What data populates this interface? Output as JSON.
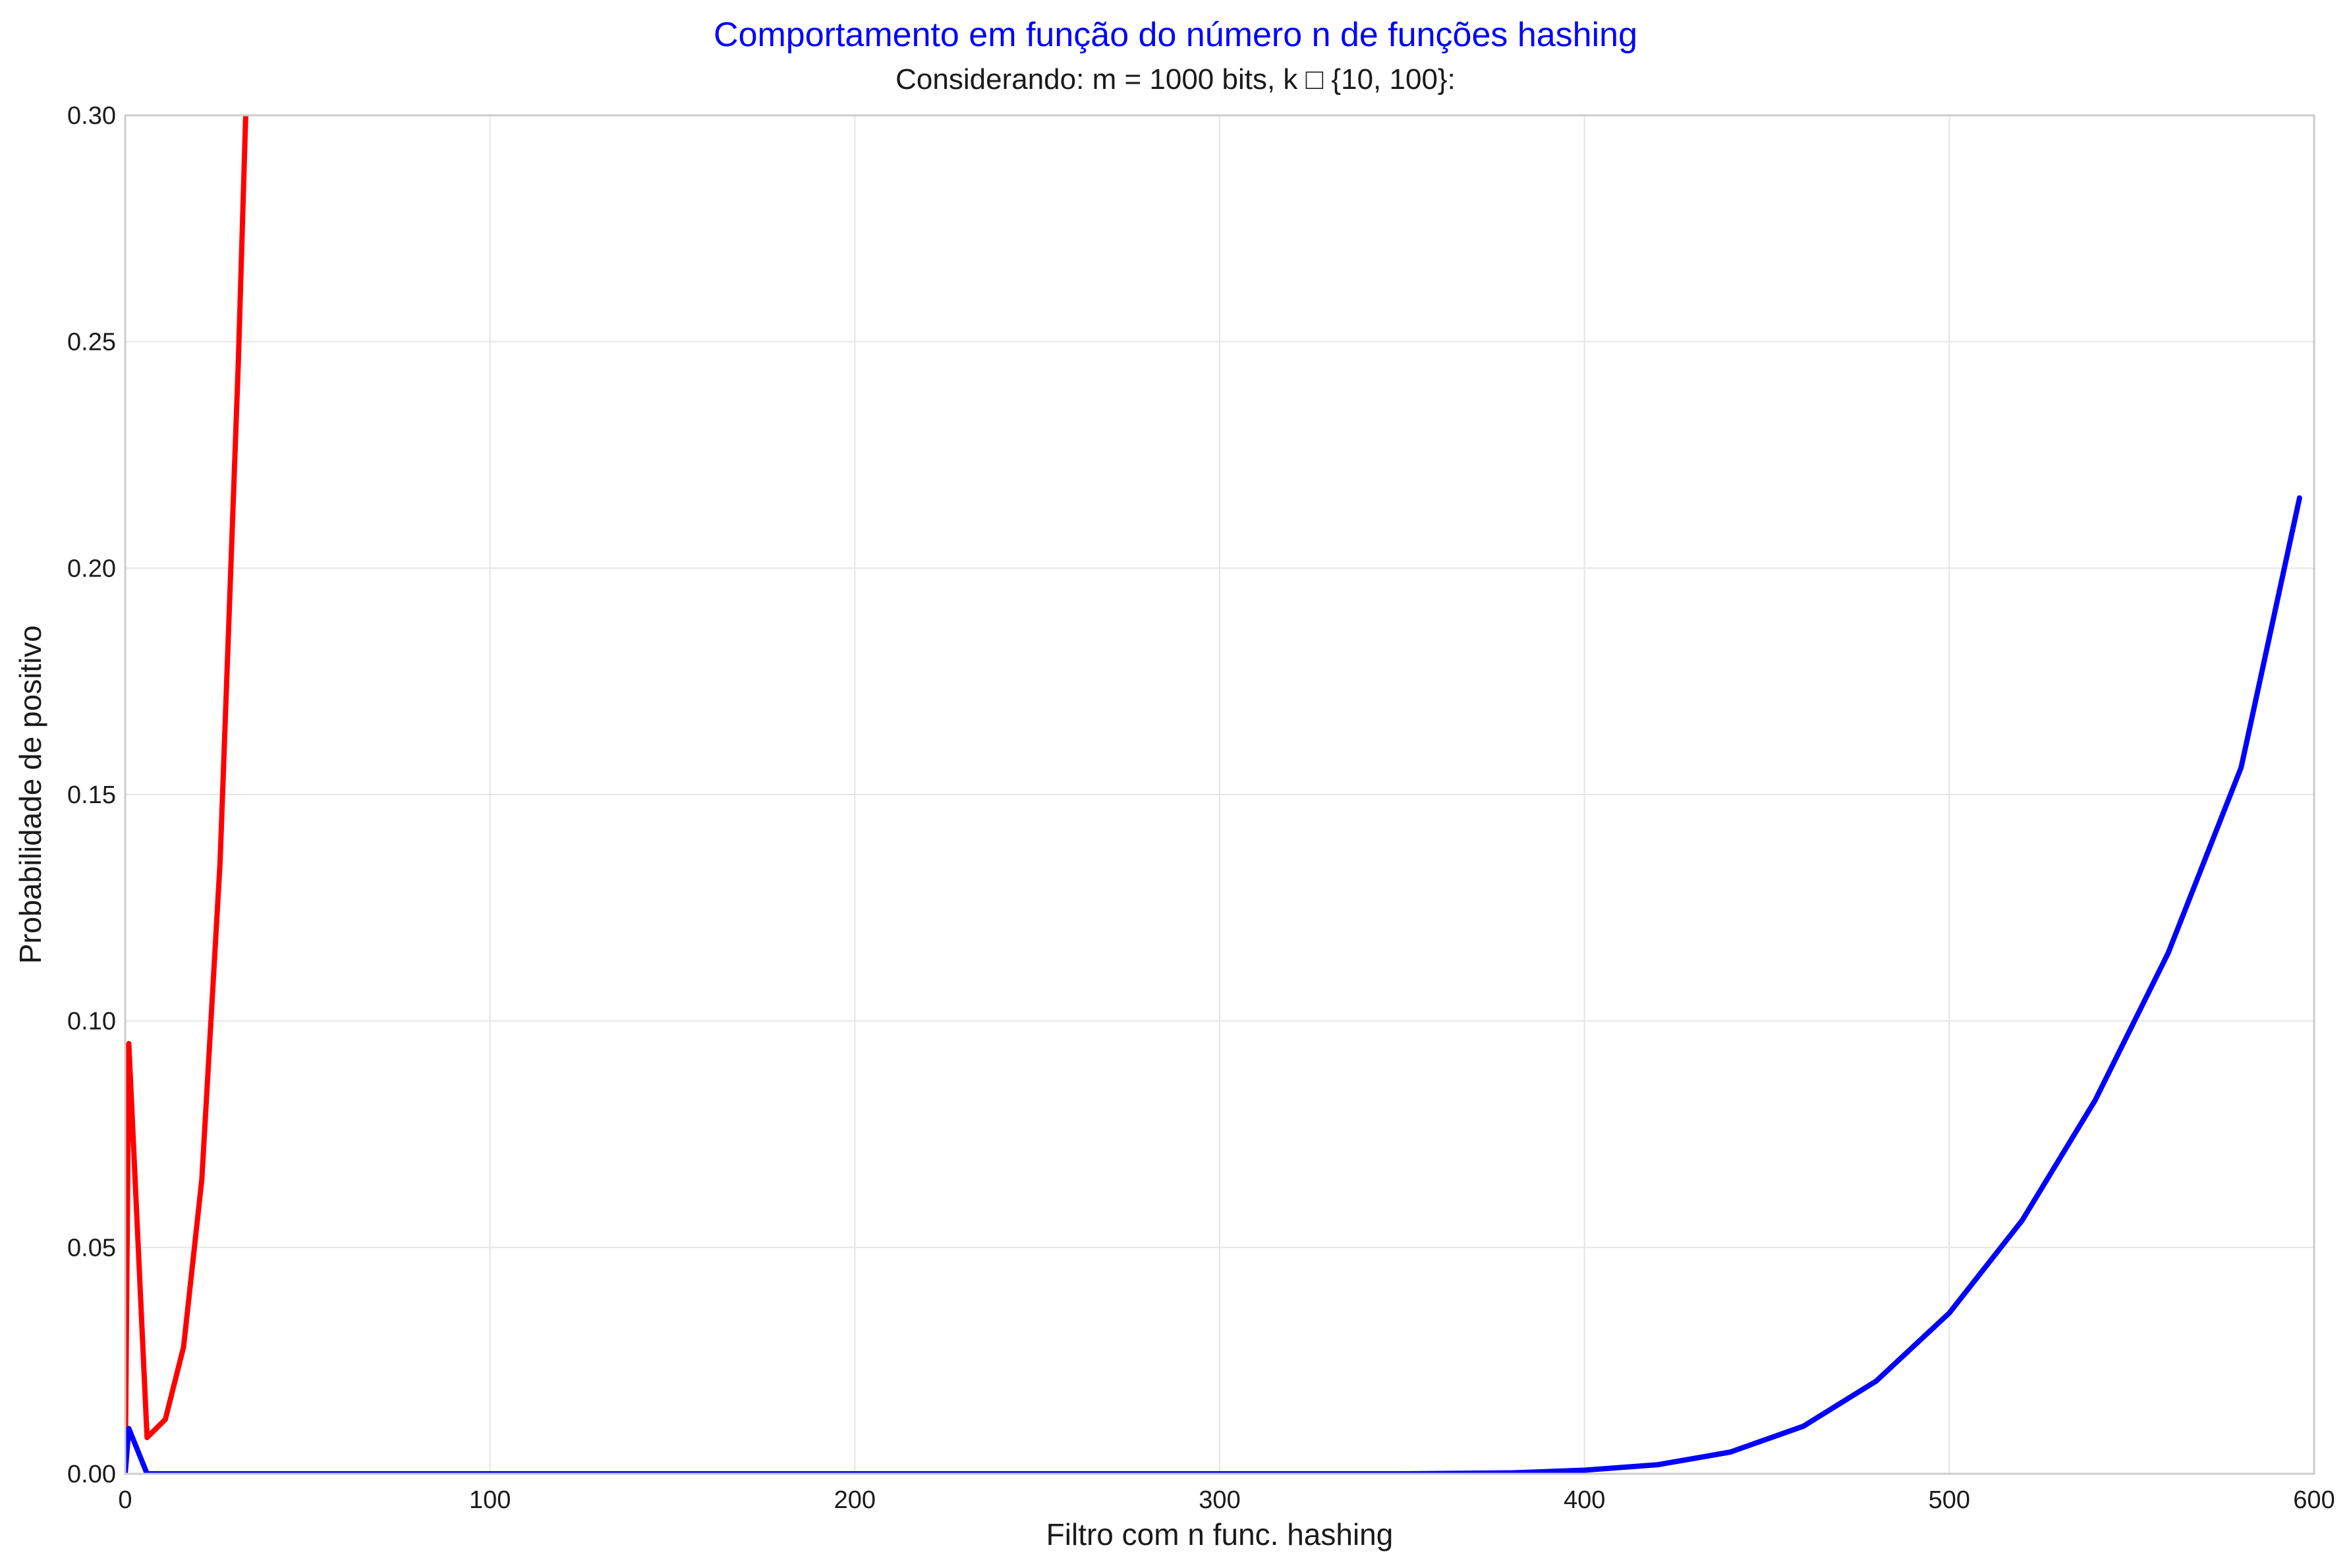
{
  "chart_data": {
    "type": "line",
    "title": "Comportamento em função do número n de funções hashing",
    "subtitle": "Considerando: m = 1000 bits, k □ {10, 100}:",
    "xlabel": "Filtro com n func. hashing",
    "ylabel": "Probabilidade de positivo",
    "xlim": [
      0,
      600
    ],
    "ylim": [
      0,
      0.3
    ],
    "xticks": [
      "0",
      "100",
      "200",
      "300",
      "400",
      "500",
      "600"
    ],
    "yticks": [
      "0.00",
      "0.05",
      "0.10",
      "0.15",
      "0.20",
      "0.25",
      "0.30"
    ],
    "grid": true,
    "legend": "none",
    "colors": {
      "title": "#0000ff",
      "series_1": "#ff0000",
      "series_2": "#0000ff",
      "grid": "#e5e5e5",
      "frame": "#cccccc"
    },
    "series": [
      {
        "color": "#ff0000",
        "x": [
          0,
          1,
          6,
          11,
          16,
          21,
          26,
          31,
          36
        ],
        "y": [
          0.0,
          0.095,
          0.008,
          0.012,
          0.028,
          0.065,
          0.135,
          0.245,
          0.38
        ]
      },
      {
        "color": "#0000ff",
        "x": [
          0,
          1,
          6,
          50,
          100,
          200,
          300,
          350,
          380,
          400,
          420,
          440,
          460,
          480,
          500,
          520,
          540,
          560,
          580,
          596
        ],
        "y": [
          0.0,
          0.01,
          0.0,
          0.0,
          0.0,
          0.0,
          0.0,
          0.0,
          0.0002,
          0.0008,
          0.002,
          0.0048,
          0.0105,
          0.0205,
          0.0355,
          0.056,
          0.0825,
          0.115,
          0.156,
          0.2155
        ]
      }
    ]
  }
}
